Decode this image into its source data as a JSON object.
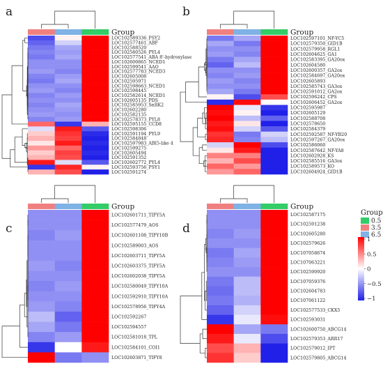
{
  "figure": {
    "panel_letters": [
      "a",
      "b",
      "c",
      "d"
    ],
    "group_header": "Group",
    "group_legend": {
      "title": "Group",
      "items": [
        {
          "label": "0.5",
          "color": "#33cc66"
        },
        {
          "label": "3.5",
          "color": "#f08080"
        },
        {
          "label": "6.5",
          "color": "#7fb2e5"
        }
      ]
    },
    "color_scale": {
      "ticks": [
        {
          "value": 1,
          "label": "1"
        },
        {
          "value": 0.5,
          "label": "0.5"
        },
        {
          "value": 0,
          "label": "0"
        },
        {
          "value": -0.5,
          "label": "−0.5"
        },
        {
          "value": -1,
          "label": "−1"
        }
      ],
      "low": "#2020e8",
      "mid": "#ffffff",
      "high": "#ff0000"
    }
  },
  "chart_data": [
    {
      "type": "heatmap",
      "panel": "a",
      "columns": [
        "3.5",
        "6.5",
        "0.5"
      ],
      "rows": [
        {
          "label": "LOC102589336_PSY2",
          "values": [
            -0.8,
            0.05,
            1.0
          ]
        },
        {
          "label": "LOC102577461_ABF",
          "values": [
            -0.7,
            -0.2,
            1.0
          ]
        },
        {
          "label": "LOC102588520",
          "values": [
            -0.6,
            -0.4,
            1.0
          ]
        },
        {
          "label": "LOC102580526_PYL4",
          "values": [
            -0.55,
            -0.45,
            1.0
          ]
        },
        {
          "label": "LOC102577541_ABA 8'-hydroxylase",
          "values": [
            -0.6,
            -0.4,
            1.0
          ]
        },
        {
          "label": "LOC102600865_NCED1",
          "values": [
            -0.5,
            -0.5,
            1.0
          ]
        },
        {
          "label": "LOC102599541_AAO",
          "values": [
            -0.5,
            -0.5,
            1.0
          ]
        },
        {
          "label": "LOC102577783_NCED3",
          "values": [
            -0.45,
            -0.55,
            1.0
          ]
        },
        {
          "label": "LOC102605008",
          "values": [
            -0.55,
            -0.45,
            1.0
          ]
        },
        {
          "label": "LOC102595971",
          "values": [
            -0.6,
            -0.4,
            1.0
          ]
        },
        {
          "label": "LOC102598663_NCED1",
          "values": [
            -0.5,
            -0.5,
            1.0
          ]
        },
        {
          "label": "LOC102598445",
          "values": [
            -0.45,
            -0.55,
            1.0
          ]
        },
        {
          "label": "LOC102582614_NCED1",
          "values": [
            -0.55,
            -0.45,
            1.0
          ]
        },
        {
          "label": "LOC102605135_PDS",
          "values": [
            -0.5,
            -0.5,
            1.0
          ]
        },
        {
          "label": "LOC102585953_SnRK2",
          "values": [
            -0.55,
            -0.4,
            1.0
          ]
        },
        {
          "label": "LOC102602280",
          "values": [
            -0.5,
            -0.45,
            1.0
          ]
        },
        {
          "label": "LOC102582135",
          "values": [
            -0.45,
            -0.5,
            1.0
          ]
        },
        {
          "label": "LOC102578373_PYL8",
          "values": [
            -0.55,
            -0.45,
            1.0
          ]
        },
        {
          "label": "LOC102595155_CCD8",
          "values": [
            0.6,
            -0.9,
            0.3
          ]
        },
        {
          "label": "LOC102598306",
          "values": [
            -0.15,
            0.9,
            -0.75
          ]
        },
        {
          "label": "LOC102591194_PYL9",
          "values": [
            0.2,
            0.8,
            -0.95
          ]
        },
        {
          "label": "LOC102584848",
          "values": [
            0.3,
            0.75,
            -1.0
          ]
        },
        {
          "label": "LOC102597983_ABI5-like 4",
          "values": [
            0.1,
            0.9,
            -0.95
          ]
        },
        {
          "label": "LOC102599275",
          "values": [
            0.4,
            0.6,
            -1.0
          ]
        },
        {
          "label": "LOC102605494",
          "values": [
            0.2,
            0.75,
            -0.95
          ]
        },
        {
          "label": "LOC102591352",
          "values": [
            0.3,
            0.7,
            -1.0
          ]
        },
        {
          "label": "LOC102602772_PYL4",
          "values": [
            0.9,
            -0.15,
            -0.75
          ]
        },
        {
          "label": "LOC102593756_PSY1",
          "values": [
            -0.9,
            0.85,
            0.05
          ]
        },
        {
          "label": "LOC102591274",
          "values": [
            0.3,
            0.7,
            -1.0
          ]
        }
      ]
    },
    {
      "type": "heatmap",
      "panel": "b",
      "columns": [
        "3.5",
        "6.5",
        "0.5"
      ],
      "rows": [
        {
          "label": "LOC102597101_NF-YC5",
          "values": [
            -0.6,
            -0.4,
            1.0
          ]
        },
        {
          "label": "LOC102579350_GID1B",
          "values": [
            -0.4,
            -0.6,
            1.0
          ]
        },
        {
          "label": "LOC102579958_RGL1",
          "values": [
            -0.5,
            -0.5,
            1.0
          ]
        },
        {
          "label": "LOC102604625_GA1",
          "values": [
            -0.45,
            -0.55,
            1.0
          ]
        },
        {
          "label": "LOC102583395_GA20ox",
          "values": [
            -0.6,
            -0.4,
            1.0
          ]
        },
        {
          "label": "LOC102604580",
          "values": [
            -0.7,
            -0.3,
            1.0
          ]
        },
        {
          "label": "LOC102600357_GA2ox",
          "values": [
            -0.5,
            -0.5,
            1.0
          ]
        },
        {
          "label": "LOC102584697_GA20ox",
          "values": [
            -0.55,
            -0.45,
            1.0
          ]
        },
        {
          "label": "LOC102605893",
          "values": [
            -0.45,
            -0.55,
            1.0
          ]
        },
        {
          "label": "LOC102585743_GA3ox",
          "values": [
            -0.5,
            -0.5,
            1.0
          ]
        },
        {
          "label": "LOC102591012_GA2ox",
          "values": [
            -0.4,
            -0.6,
            1.0
          ]
        },
        {
          "label": "LOC102596242_CPS",
          "values": [
            0.05,
            -0.8,
            0.7
          ]
        },
        {
          "label": "LOC102606452_GA2ox",
          "values": [
            -0.95,
            0.95,
            0.0
          ]
        },
        {
          "label": "LOC102595987",
          "values": [
            1.0,
            -0.1,
            -0.9
          ]
        },
        {
          "label": "LOC102605129",
          "values": [
            0.95,
            0.05,
            -1.0
          ]
        },
        {
          "label": "LOC102588708",
          "values": [
            1.0,
            -0.3,
            -0.7
          ]
        },
        {
          "label": "LOC102578650",
          "values": [
            0.9,
            0.1,
            -1.0
          ]
        },
        {
          "label": "LOC102584379",
          "values": [
            0.95,
            -0.2,
            -0.75
          ]
        },
        {
          "label": "LOC102592587_NF-YB20",
          "values": [
            0.8,
            -0.6,
            -0.2
          ]
        },
        {
          "label": "LOC102597267_GA20ox",
          "values": [
            0.85,
            -0.55,
            -0.3
          ]
        },
        {
          "label": "LOC102586060",
          "values": [
            -0.2,
            1.0,
            -0.8
          ]
        },
        {
          "label": "LOC102587642_NF-YA8",
          "values": [
            0.1,
            0.9,
            -1.0
          ]
        },
        {
          "label": "LOC102602928_KS",
          "values": [
            0.5,
            0.5,
            -1.0
          ]
        },
        {
          "label": "LOC102585516_GA3ox",
          "values": [
            0.3,
            0.7,
            -1.0
          ]
        },
        {
          "label": "LOC102589573_KO",
          "values": [
            0.6,
            0.4,
            -1.0
          ]
        },
        {
          "label": "LOC102604924_GID1B",
          "values": [
            0.4,
            0.6,
            -1.0
          ]
        }
      ]
    },
    {
      "type": "heatmap",
      "panel": "c",
      "columns": [
        "3.5",
        "6.5",
        "0.5"
      ],
      "rows": [
        {
          "label": "LOC102601711_TIFY5A",
          "values": [
            -0.5,
            -0.5,
            1.0
          ]
        },
        {
          "label": "LOC102577479_AOS",
          "values": [
            -0.5,
            -0.5,
            1.0
          ]
        },
        {
          "label": "LOC102601108_TIFY10B",
          "values": [
            -0.55,
            -0.45,
            1.0
          ]
        },
        {
          "label": "LOC102589003_AOS",
          "values": [
            -0.5,
            -0.5,
            1.0
          ]
        },
        {
          "label": "LOC102603711_TIFY5A",
          "values": [
            -0.5,
            -0.5,
            1.0
          ]
        },
        {
          "label": "LOC102603375_TIFY5A",
          "values": [
            -0.45,
            -0.55,
            1.0
          ]
        },
        {
          "label": "LOC102602038_TIFY5A",
          "values": [
            -0.5,
            -0.5,
            1.0
          ]
        },
        {
          "label": "LOC102580049_TIFY10A",
          "values": [
            -0.55,
            -0.45,
            1.0
          ]
        },
        {
          "label": "LOC102592910_TIFY10A",
          "values": [
            -0.5,
            -0.5,
            1.0
          ]
        },
        {
          "label": "LOC102578956_TIFY4A",
          "values": [
            -0.45,
            -0.55,
            1.0
          ]
        },
        {
          "label": "LOC102592267",
          "values": [
            -0.3,
            -0.7,
            1.0
          ]
        },
        {
          "label": "LOC102594557",
          "values": [
            -0.4,
            -0.6,
            1.0
          ]
        },
        {
          "label": "LOC102581018_TPL",
          "values": [
            -0.55,
            -0.45,
            1.0
          ]
        },
        {
          "label": "LOC102584101_COI1",
          "values": [
            -0.9,
            0.0,
            0.9
          ]
        },
        {
          "label": "LOC102603871_TIFY8",
          "values": [
            1.0,
            -0.6,
            -0.5
          ]
        }
      ]
    },
    {
      "type": "heatmap",
      "panel": "d",
      "columns": [
        "3.5",
        "6.5",
        "0.5"
      ],
      "rows": [
        {
          "label": "LOC102587175",
          "values": [
            -0.5,
            -0.5,
            1.0
          ]
        },
        {
          "label": "LOC102591238",
          "values": [
            -0.5,
            -0.5,
            1.0
          ]
        },
        {
          "label": "LOC102605280",
          "values": [
            -0.55,
            -0.45,
            1.0
          ]
        },
        {
          "label": "LOC102579626",
          "values": [
            -0.5,
            -0.5,
            1.0
          ]
        },
        {
          "label": "LOC107058674",
          "values": [
            -0.6,
            -0.4,
            1.0
          ]
        },
        {
          "label": "LOC107063221",
          "values": [
            -0.55,
            -0.45,
            1.0
          ]
        },
        {
          "label": "LOC102590920",
          "values": [
            -0.5,
            -0.5,
            1.0
          ]
        },
        {
          "label": "LOC107059376",
          "values": [
            -0.6,
            -0.3,
            1.0
          ]
        },
        {
          "label": "LOC102604783",
          "values": [
            -0.65,
            -0.3,
            1.0
          ]
        },
        {
          "label": "LOC107061122",
          "values": [
            -0.6,
            -0.35,
            1.0
          ]
        },
        {
          "label": "LOC102577533_CKX5",
          "values": [
            -0.7,
            -0.2,
            1.0
          ]
        },
        {
          "label": "LOC102593031",
          "values": [
            -0.9,
            -0.1,
            0.95
          ]
        },
        {
          "label": "LOC102600750_ABCG14",
          "values": [
            1.0,
            -0.4,
            -0.6
          ]
        },
        {
          "label": "LOC102579353_ARR17",
          "values": [
            0.9,
            -0.1,
            -0.8
          ]
        },
        {
          "label": "LOC102579012_IPT",
          "values": [
            0.7,
            0.3,
            -1.0
          ]
        },
        {
          "label": "LOC102579805_ABCG14",
          "values": [
            0.8,
            0.2,
            -1.0
          ]
        }
      ]
    }
  ]
}
